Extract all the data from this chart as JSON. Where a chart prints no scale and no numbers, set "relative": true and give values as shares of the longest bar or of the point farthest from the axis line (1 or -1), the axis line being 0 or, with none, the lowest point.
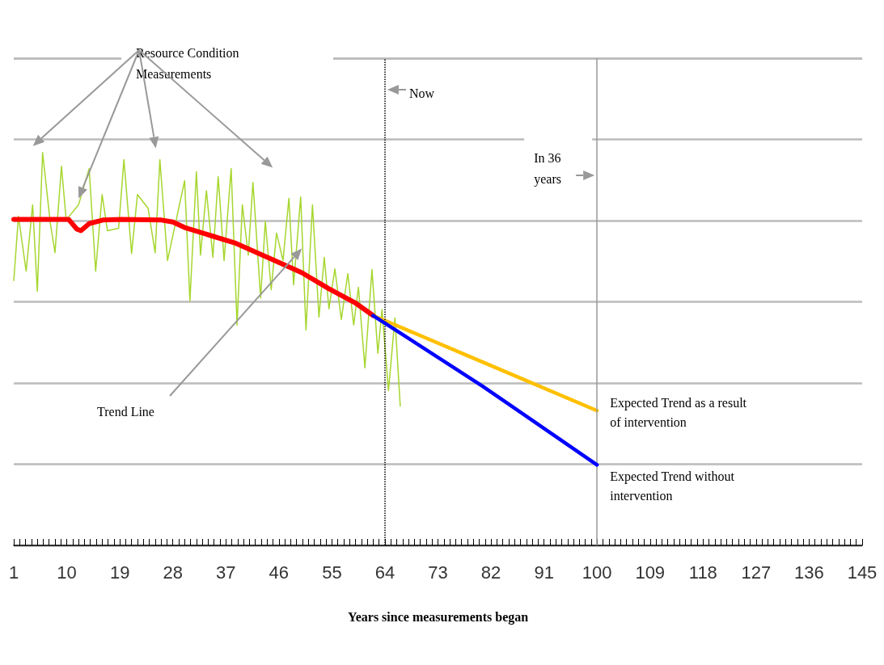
{
  "chart_data": {
    "type": "line",
    "xlabel": "Years since measurements began",
    "relative": true,
    "xlim": [
      1,
      145
    ],
    "xticks": [
      1,
      10,
      19,
      28,
      37,
      46,
      55,
      64,
      73,
      82,
      91,
      100,
      109,
      118,
      127,
      136,
      145
    ],
    "grid": "y",
    "marker": "none",
    "annotations": [
      "Trend Line"
    ],
    "line_style": "solid",
    "series": [
      {
        "name": "Resource Condition Measurements",
        "color": "#a6d62e",
        "x": [
          1.0,
          1.8,
          3.1,
          4.2,
          5.0,
          5.9,
          7.2,
          8.0,
          9.1,
          9.9,
          12.0,
          13.8,
          14.9,
          16.0,
          16.9,
          18.8,
          19.7,
          21.0,
          22.0,
          23.8,
          25.0,
          25.8,
          27.1,
          30.0,
          30.9,
          32.0,
          32.7,
          33.7,
          34.8,
          35.7,
          36.7,
          37.9,
          38.9,
          39.8,
          40.8,
          41.6,
          42.9,
          43.7,
          44.7,
          45.6,
          46.7,
          47.7,
          48.5,
          49.7,
          50.6,
          51.7,
          52.8,
          53.7,
          54.5,
          55.5,
          56.6,
          57.7,
          58.7,
          59.5,
          60.6,
          61.8,
          62.8,
          63.5,
          64.6,
          65.7,
          66.6
        ],
        "values": [
          0.674,
          0.838,
          0.698,
          0.867,
          0.647,
          1.0,
          0.821,
          0.745,
          0.965,
          0.828,
          0.867,
          0.959,
          0.698,
          0.893,
          0.801,
          0.807,
          0.982,
          0.743,
          0.893,
          0.858,
          0.745,
          0.982,
          0.725,
          0.928,
          0.622,
          0.951,
          0.739,
          0.903,
          0.733,
          0.938,
          0.725,
          0.959,
          0.561,
          0.867,
          0.739,
          0.924,
          0.63,
          0.825,
          0.651,
          0.795,
          0.725,
          0.883,
          0.663,
          0.887,
          0.548,
          0.867,
          0.581,
          0.733,
          0.602,
          0.704,
          0.575,
          0.692,
          0.561,
          0.657,
          0.452,
          0.702,
          0.489,
          0.6,
          0.394,
          0.579,
          0.355
        ]
      },
      {
        "color": "#ff0000",
        "x": [
          1,
          10.3,
          11.7,
          12.4,
          13.8,
          16.1,
          19.3,
          26.1,
          28.0,
          30.0,
          32.6,
          38.5,
          45.3,
          49.9,
          54.5,
          59.1,
          62.0
        ],
        "values": [
          0.83,
          0.83,
          0.805,
          0.801,
          0.819,
          0.828,
          0.83,
          0.828,
          0.823,
          0.809,
          0.797,
          0.77,
          0.725,
          0.694,
          0.653,
          0.616,
          0.585
        ]
      },
      {
        "name": "Expected Trend as a result of intervention",
        "color": "#ffc000",
        "x": [
          62,
          81,
          100
        ],
        "values": [
          0.585,
          0.464,
          0.343
        ]
      },
      {
        "name": "Expected Trend without intervention",
        "color": "#0000ff",
        "x": [
          62,
          80.6,
          100
        ],
        "values": [
          0.585,
          0.405,
          0.205
        ]
      }
    ],
    "ref_lines": [
      {
        "axis": "x",
        "value": 64,
        "label": "Now",
        "color": "#000000",
        "line_style": "dotted"
      },
      {
        "axis": "x",
        "value": 100,
        "label": "In 36 years",
        "color": "#999999",
        "line_style": "solid"
      }
    ]
  }
}
